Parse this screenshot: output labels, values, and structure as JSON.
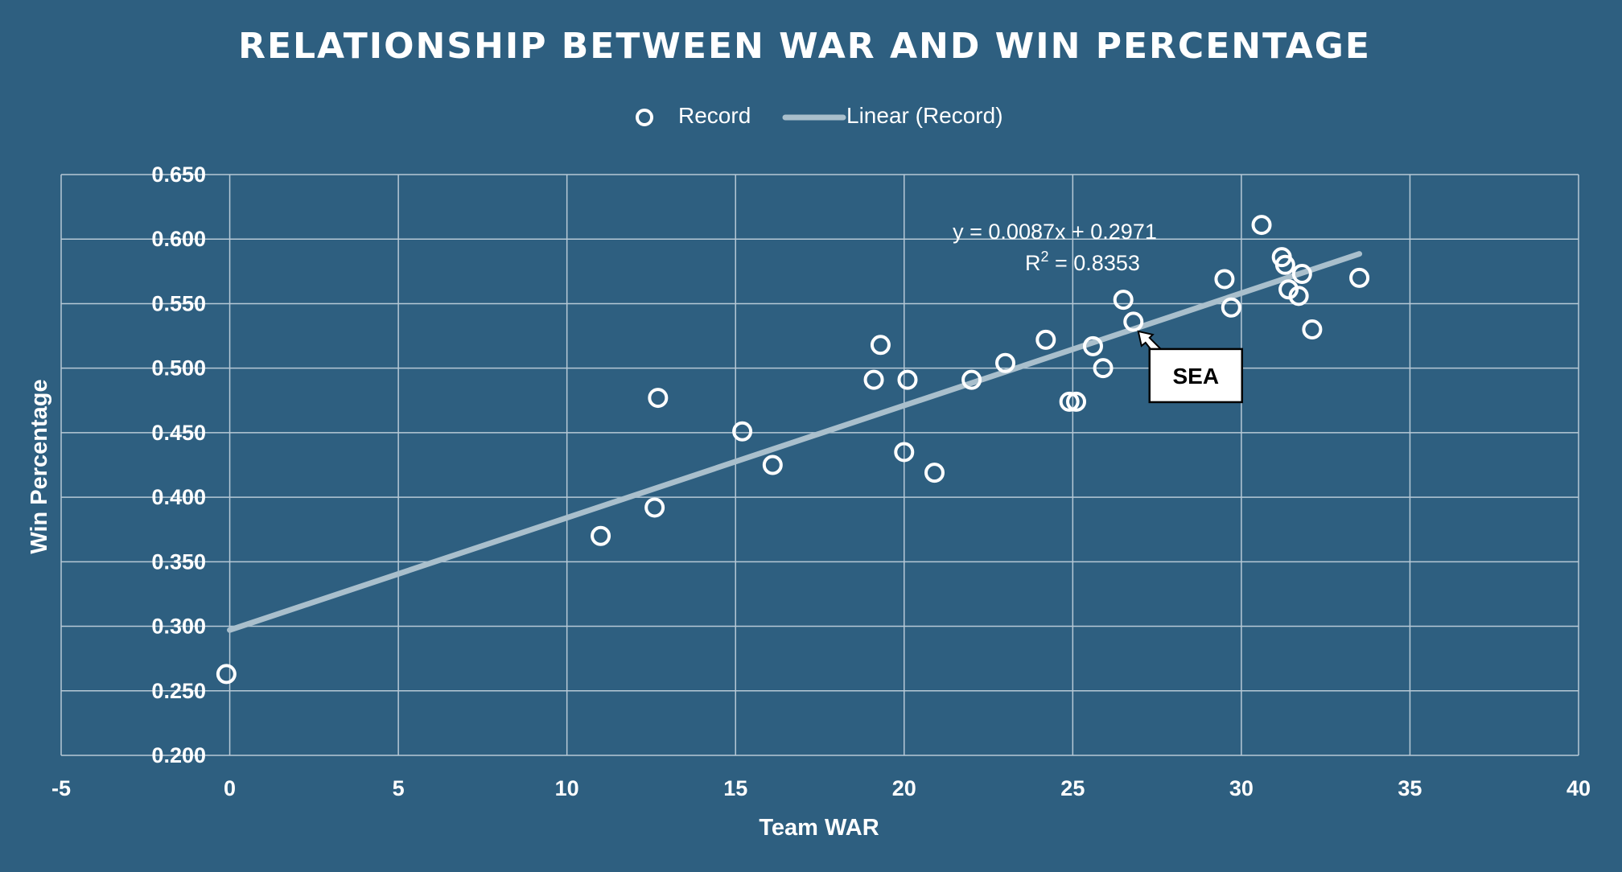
{
  "chart_data": {
    "type": "scatter",
    "title": "RELATIONSHIP BETWEEN WAR AND WIN PERCENTAGE",
    "xlabel": "Team WAR",
    "ylabel": "Win Percentage",
    "xlim": [
      -5,
      40
    ],
    "ylim": [
      0.2,
      0.65
    ],
    "x_ticks": [
      -5,
      0,
      5,
      10,
      15,
      20,
      25,
      30,
      35,
      40
    ],
    "x_tick_labels": [
      "-5",
      "0",
      "5",
      "10",
      "15",
      "20",
      "25",
      "30",
      "35",
      "40"
    ],
    "y_ticks": [
      0.2,
      0.25,
      0.3,
      0.35,
      0.4,
      0.45,
      0.5,
      0.55,
      0.6,
      0.65
    ],
    "y_tick_labels": [
      "0.200",
      "0.250",
      "0.300",
      "0.350",
      "0.400",
      "0.450",
      "0.500",
      "0.550",
      "0.600",
      "0.650"
    ],
    "grid": true,
    "legend": {
      "position": "top",
      "series_label": "Record",
      "trend_label": "Linear (Record)"
    },
    "series": [
      {
        "name": "Record",
        "points": [
          {
            "x": -0.1,
            "y": 0.263
          },
          {
            "x": 11.0,
            "y": 0.37
          },
          {
            "x": 12.6,
            "y": 0.392
          },
          {
            "x": 12.7,
            "y": 0.477
          },
          {
            "x": 15.2,
            "y": 0.451
          },
          {
            "x": 16.1,
            "y": 0.425
          },
          {
            "x": 19.1,
            "y": 0.491
          },
          {
            "x": 19.3,
            "y": 0.518
          },
          {
            "x": 20.0,
            "y": 0.435
          },
          {
            "x": 20.1,
            "y": 0.491
          },
          {
            "x": 20.9,
            "y": 0.419
          },
          {
            "x": 22.0,
            "y": 0.491
          },
          {
            "x": 23.0,
            "y": 0.504
          },
          {
            "x": 24.2,
            "y": 0.522
          },
          {
            "x": 24.9,
            "y": 0.474
          },
          {
            "x": 25.1,
            "y": 0.474
          },
          {
            "x": 25.6,
            "y": 0.517
          },
          {
            "x": 25.9,
            "y": 0.5
          },
          {
            "x": 26.5,
            "y": 0.553
          },
          {
            "x": 26.8,
            "y": 0.536
          },
          {
            "x": 29.5,
            "y": 0.569
          },
          {
            "x": 29.7,
            "y": 0.547
          },
          {
            "x": 30.6,
            "y": 0.611
          },
          {
            "x": 31.2,
            "y": 0.586
          },
          {
            "x": 31.3,
            "y": 0.58
          },
          {
            "x": 31.4,
            "y": 0.561
          },
          {
            "x": 31.7,
            "y": 0.556
          },
          {
            "x": 31.8,
            "y": 0.573
          },
          {
            "x": 32.1,
            "y": 0.53
          },
          {
            "x": 33.5,
            "y": 0.57
          }
        ]
      }
    ],
    "trendline": {
      "type": "linear",
      "slope": 0.0087,
      "intercept": 0.2971,
      "x_range": [
        0,
        33.5
      ],
      "equation_label": "y = 0.0087x + 0.2971",
      "r2_prefix": "R",
      "r2_sup": "2",
      "r2_value": " = 0.8353"
    },
    "annotations": [
      {
        "text": "SEA",
        "target": {
          "x": 26.8,
          "y": 0.536
        }
      }
    ]
  }
}
